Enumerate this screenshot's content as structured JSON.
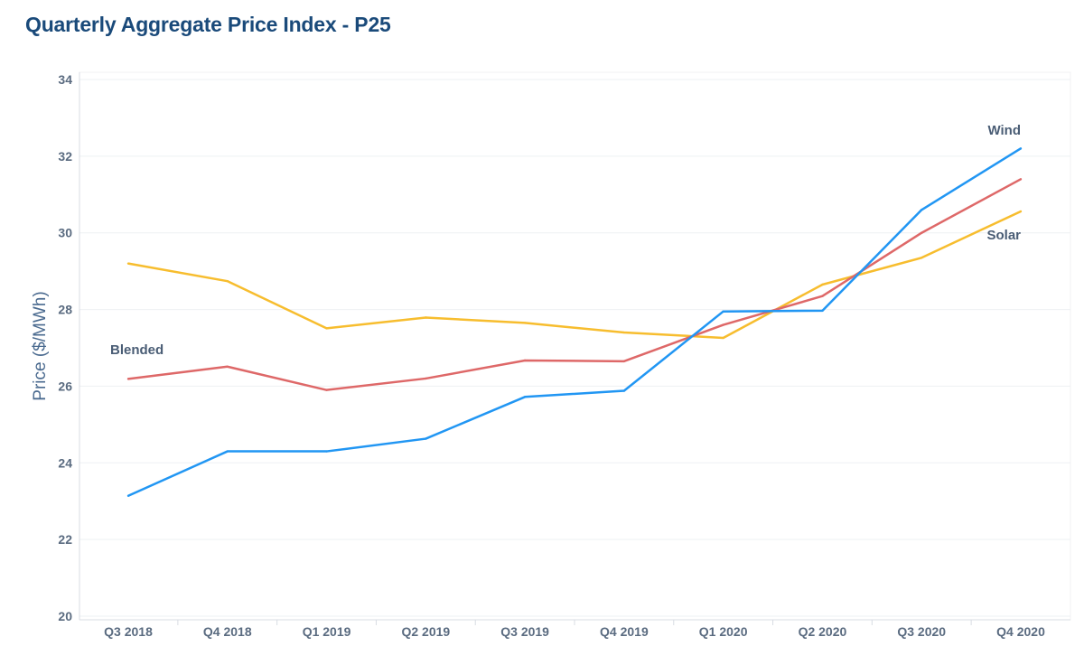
{
  "chart_data": {
    "type": "line",
    "title": "Quarterly Aggregate Price Index - P25",
    "xlabel": "",
    "ylabel": "Price ($/MWh)",
    "categories": [
      "Q3 2018",
      "Q4 2018",
      "Q1 2019",
      "Q2 2019",
      "Q3 2019",
      "Q4 2019",
      "Q1 2020",
      "Q2 2020",
      "Q3 2020",
      "Q4 2020"
    ],
    "ylim": [
      20,
      34
    ],
    "yticks": [
      "20",
      "22",
      "24",
      "26",
      "28",
      "30",
      "32",
      "34"
    ],
    "grid": true,
    "series": [
      {
        "name": "Solar",
        "color": "#f7bd2e",
        "values": [
          29.2,
          28.74,
          27.51,
          27.79,
          27.65,
          27.4,
          27.26,
          28.65,
          29.35,
          30.56
        ]
      },
      {
        "name": "Blended",
        "color": "#de6868",
        "values": [
          26.19,
          26.51,
          25.9,
          26.2,
          26.67,
          26.65,
          27.6,
          28.35,
          30.0,
          31.4
        ]
      },
      {
        "name": "Wind",
        "color": "#2196f3",
        "values": [
          23.14,
          24.3,
          24.3,
          24.63,
          25.72,
          25.88,
          27.95,
          27.97,
          30.6,
          32.2
        ]
      }
    ]
  }
}
